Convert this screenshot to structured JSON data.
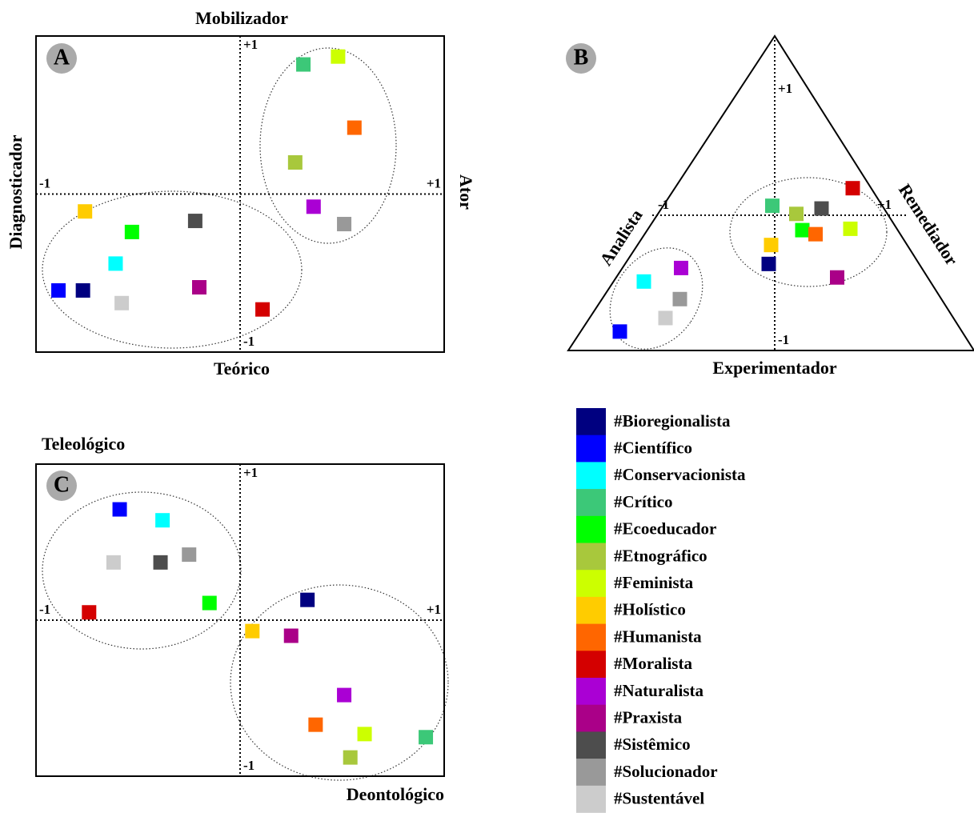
{
  "legend": {
    "names": [
      "#Bioregionalista",
      "#Científico",
      "#Conservacionista",
      "#Crítico",
      "#Ecoeducador",
      "#Etnográfico",
      "#Feminista",
      "#Holístico",
      "#Humanista",
      "#Moralista",
      "#Naturalista",
      "#Praxista",
      "#Sistêmico",
      "#Solucionador",
      "#Sustentável"
    ],
    "colors": [
      "#000080",
      "#0000ff",
      "#00ffff",
      "#3cc878",
      "#00ff00",
      "#a8c83c",
      "#ccff00",
      "#ffcc00",
      "#ff6600",
      "#d40000",
      "#aa00d4",
      "#aa0088",
      "#4d4d4d",
      "#999999",
      "#cccccc"
    ]
  },
  "chart_data": [
    {
      "type": "scatter",
      "panel": "A",
      "top_label": "Mobilizador",
      "bottom_label": "Teórico",
      "left_label": "Diagnosticador",
      "right_label": "Ator",
      "xlim": [
        -1,
        1
      ],
      "ylim": [
        -1,
        1
      ],
      "xticks": [
        -1,
        {
          "value": 1,
          "label": "+1"
        }
      ],
      "yticks": [
        -1,
        {
          "value": 1,
          "label": "+1"
        }
      ],
      "x": [
        -0.77,
        -0.89,
        -0.61,
        0.31,
        -0.53,
        0.27,
        0.48,
        -0.76,
        0.56,
        0.11,
        0.36,
        -0.2,
        -0.22,
        0.51,
        -0.58
      ],
      "y": [
        -0.61,
        -0.61,
        -0.44,
        0.82,
        -0.24,
        0.2,
        0.87,
        -0.11,
        0.42,
        -0.73,
        -0.08,
        -0.59,
        -0.17,
        -0.19,
        -0.69
      ]
    },
    {
      "type": "ternary",
      "panel": "B",
      "left_label": "Analista",
      "right_label": "Remediador",
      "bottom_label": "Experimentador",
      "xlim": [
        -1,
        1
      ],
      "ylim": [
        -1,
        1
      ],
      "xticks": [
        -1,
        {
          "value": 1,
          "label": "+1"
        }
      ],
      "yticks": [
        -1,
        {
          "value": 1,
          "label": "+1"
        }
      ],
      "x": [
        -0.05,
        -1.29,
        -1.09,
        -0.02,
        0.23,
        0.18,
        0.63,
        -0.03,
        0.34,
        0.65,
        -0.78,
        0.52,
        0.39,
        -0.79,
        -0.91
      ],
      "y": [
        -0.36,
        -0.86,
        -0.49,
        0.07,
        -0.11,
        0.01,
        -0.1,
        -0.22,
        -0.14,
        0.2,
        -0.39,
        -0.46,
        0.05,
        -0.62,
        -0.76
      ]
    },
    {
      "type": "scatter",
      "panel": "C",
      "top_label": "Teleológico",
      "bottom_label": "Deontológico",
      "xlim": [
        -1,
        1
      ],
      "ylim": [
        -1,
        1
      ],
      "xticks": [
        -1,
        {
          "value": 1,
          "label": "+1"
        }
      ],
      "yticks": [
        -1,
        {
          "value": 1,
          "label": "+1"
        }
      ],
      "x": [
        0.33,
        -0.59,
        -0.38,
        0.91,
        -0.15,
        0.54,
        0.61,
        0.06,
        0.37,
        -0.74,
        0.51,
        0.25,
        -0.39,
        -0.25,
        -0.62
      ],
      "y": [
        0.13,
        0.71,
        0.64,
        -0.75,
        0.11,
        -0.88,
        -0.73,
        -0.07,
        -0.67,
        0.05,
        -0.48,
        -0.1,
        0.37,
        0.42,
        0.37
      ]
    }
  ]
}
